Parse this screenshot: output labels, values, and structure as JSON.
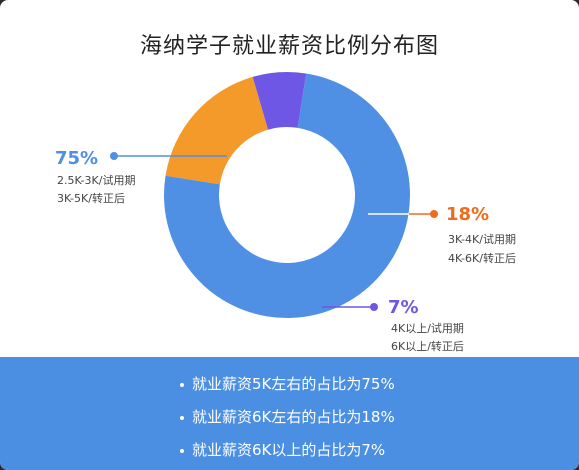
{
  "title": "海纳学子就业薪资比例分布图",
  "chart_data": {
    "type": "pie",
    "title": "海纳学子就业薪资比例分布图",
    "donut": true,
    "slices": [
      {
        "label_pct": "75%",
        "value": 75,
        "color": "#4f90e5",
        "label_color": "#4f90e5",
        "lines": [
          "2.5K-3K/试用期",
          "3K-5K/转正后"
        ]
      },
      {
        "label_pct": "18%",
        "value": 18,
        "color": "#f39a2b",
        "label_color": "#f06b1d",
        "lines": [
          "3K-4K/试用期",
          "4K-6K/转正后"
        ]
      },
      {
        "label_pct": "7%",
        "value": 7,
        "color": "#6f57e6",
        "label_color": "#6f57e6",
        "lines": [
          "4K以上/试用期",
          "6K以上/转正后"
        ]
      }
    ]
  },
  "footer": {
    "items": [
      "就业薪资5K左右的占比为75%",
      "就业薪资6K左右的占比为18%",
      "就业薪资6K以上的占比为7%"
    ]
  }
}
